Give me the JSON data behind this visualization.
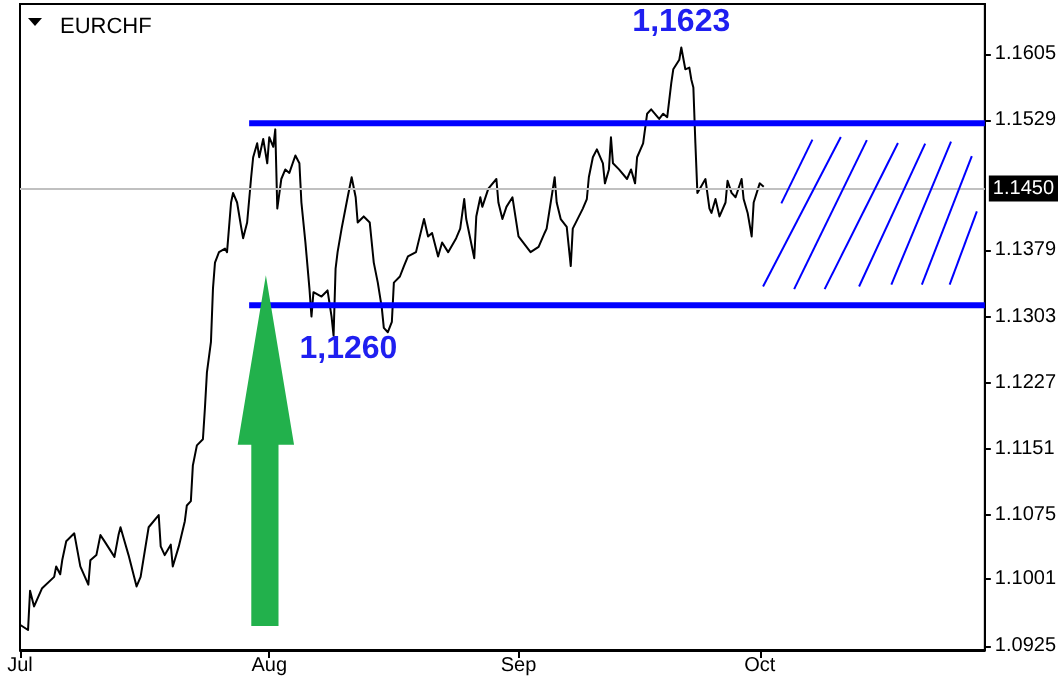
{
  "chart_data": {
    "type": "line",
    "title": "EURCHF",
    "x": [
      "--07-01T00:00",
      "--07-02T00:00",
      "--07-02T06:00",
      "--07-02T18:00",
      "--07-03T18:00",
      "--07-05T06:00",
      "--07-05T12:00",
      "--07-06T00:00",
      "--07-06T06:00",
      "--07-06T18:00",
      "--07-07T18:00",
      "--07-08T12:00",
      "--07-09T12:00",
      "--07-09T18:00",
      "--07-10T12:00",
      "--07-11T00:00",
      "--07-11T12:00",
      "--07-12T18:00",
      "--07-13T06:00",
      "--07-13T12:00",
      "--07-14T00:00",
      "--07-14T12:00",
      "--07-15T12:00",
      "--07-16T00:00",
      "--07-17T00:00",
      "--07-18T06:00",
      "--07-18T12:00",
      "--07-19T00:00",
      "--07-19T18:00",
      "--07-20T00:00",
      "--07-20T18:00",
      "--07-21T12:00",
      "--07-21T18:00",
      "--07-22T06:00",
      "--07-22T12:00",
      "--07-23T00:00",
      "--07-23T18:00",
      "--07-24T00:00",
      "--07-24T06:00",
      "--07-24T18:00",
      "--07-25T00:00",
      "--07-25T06:00",
      "--07-25T18:00",
      "--07-26T12:00",
      "--07-26T18:00",
      "--07-27T06:00",
      "--07-27T12:00",
      "--07-28T00:00",
      "--07-28T12:00",
      "--07-28T18:00",
      "--07-29T06:00",
      "--07-29T18:00",
      "--07-30T00:00",
      "--07-30T12:00",
      "--07-30T18:00",
      "--07-31T06:00",
      "--07-31T18:00",
      "--08-01T00:00",
      "--08-01T12:00",
      "--08-01T18:00",
      "--08-02T00:00",
      "--08-02T12:00",
      "--08-03T00:00",
      "--08-03T12:00",
      "--08-04T06:00",
      "--08-04T18:00",
      "--08-05T00:00",
      "--08-05T12:00",
      "--08-06T00:00",
      "--08-06T06:00",
      "--08-06T12:00",
      "--08-07T12:00",
      "--08-08T06:00",
      "--08-08T18:00",
      "--08-09T00:00",
      "--08-09T06:00",
      "--08-09T12:00",
      "--08-10T00:00",
      "--08-10T18:00",
      "--08-11T06:00",
      "--08-11T18:00",
      "--08-12T00:00",
      "--08-12T18:00",
      "--08-13T12:00",
      "--08-14T00:00",
      "--08-14T12:00",
      "--08-15T00:00",
      "--08-15T06:00",
      "--08-15T18:00",
      "--08-16T06:00",
      "--08-16T12:00",
      "--08-17T06:00",
      "--08-17T18:00",
      "--08-18T06:00",
      "--08-19T06:00",
      "--08-20T06:00",
      "--08-20T18:00",
      "--08-21T06:00",
      "--08-22T00:00",
      "--08-22T12:00",
      "--08-23T06:00",
      "--08-24T06:00",
      "--08-24T18:00",
      "--08-25T06:00",
      "--08-25T12:00",
      "--08-26T12:00",
      "--08-26T18:00",
      "--08-27T06:00",
      "--08-27T12:00",
      "--08-28T06:00",
      "--08-29T06:00",
      "--08-29T12:00",
      "--08-30T00:00",
      "--08-30T12:00",
      "--08-31T06:00",
      "--09-01T00:00",
      "--09-02T12:00",
      "--09-03T12:00",
      "--09-04T06:00",
      "--09-04T12:00",
      "--09-05T12:00",
      "--09-05T18:00",
      "--09-06T06:00",
      "--09-07T00:00",
      "--09-07T12:00",
      "--09-07T18:00",
      "--09-09T00:00",
      "--09-09T12:00",
      "--09-09T18:00",
      "--09-10T06:00",
      "--09-10T18:00",
      "--09-11T12:00",
      "--09-11T18:00",
      "--09-12T06:00",
      "--09-12T12:00",
      "--09-12T18:00",
      "--09-13T12:00",
      "--09-14T12:00",
      "--09-15T00:00",
      "--09-15T12:00",
      "--09-15T18:00",
      "--09-16T12:00",
      "--09-17T00:00",
      "--09-17T12:00",
      "--09-18T12:00",
      "--09-19T00:00",
      "--09-19T12:00",
      "--09-20T00:00",
      "--09-20T06:00",
      "--09-21T00:00",
      "--09-21T06:00",
      "--09-21T18:00",
      "--09-22T06:00",
      "--09-22T12:00",
      "--09-22T18:00",
      "--09-23T00:00",
      "--09-23T06:00",
      "--09-24T06:00",
      "--09-24T18:00",
      "--09-25T00:00",
      "--09-25T12:00",
      "--09-26T00:00",
      "--09-26T18:00",
      "--09-27T00:00",
      "--09-27T12:00",
      "--09-28T00:00",
      "--09-28T18:00",
      "--09-29T00:00",
      "--09-29T12:00",
      "--09-30T00:00",
      "--09-30T06:00",
      "--10-01T00:00",
      "--10-01T12:00"
    ],
    "series": [
      {
        "color": "#000000",
        "values": [
          1.0949,
          1.0943,
          1.0988,
          1.097,
          1.0991,
          1.1004,
          1.1016,
          1.1007,
          1.1023,
          1.1045,
          1.1054,
          1.1016,
          1.0995,
          1.1023,
          1.1029,
          1.1052,
          1.1045,
          1.1027,
          1.1052,
          1.1061,
          1.1045,
          1.1029,
          1.0993,
          1.1004,
          1.1061,
          1.1075,
          1.1039,
          1.1029,
          1.1041,
          1.1016,
          1.1039,
          1.1068,
          1.1086,
          1.1091,
          1.1132,
          1.1155,
          1.1162,
          1.1198,
          1.1239,
          1.1274,
          1.1335,
          1.1365,
          1.1377,
          1.1381,
          1.1377,
          1.1434,
          1.1445,
          1.1434,
          1.1406,
          1.1393,
          1.1411,
          1.1463,
          1.1486,
          1.1502,
          1.1486,
          1.1507,
          1.1479,
          1.1509,
          1.1498,
          1.1518,
          1.1427,
          1.1461,
          1.1472,
          1.1468,
          1.1488,
          1.1479,
          1.1434,
          1.1388,
          1.1335,
          1.1303,
          1.1331,
          1.1326,
          1.1333,
          1.1303,
          1.1281,
          1.1358,
          1.1377,
          1.1404,
          1.144,
          1.1463,
          1.144,
          1.1411,
          1.1418,
          1.1411,
          1.1365,
          1.1342,
          1.1313,
          1.129,
          1.1285,
          1.1297,
          1.1342,
          1.1349,
          1.1361,
          1.1372,
          1.1377,
          1.1415,
          1.1395,
          1.1399,
          1.1372,
          1.1388,
          1.1377,
          1.1393,
          1.1404,
          1.1438,
          1.1415,
          1.137,
          1.1418,
          1.144,
          1.1429,
          1.145,
          1.1461,
          1.1434,
          1.1415,
          1.1429,
          1.144,
          1.1395,
          1.1377,
          1.1383,
          1.1399,
          1.1404,
          1.1463,
          1.1434,
          1.1415,
          1.1406,
          1.1361,
          1.1404,
          1.1427,
          1.1438,
          1.1463,
          1.1486,
          1.1495,
          1.1479,
          1.1456,
          1.1472,
          1.1509,
          1.1479,
          1.1472,
          1.1461,
          1.1472,
          1.1456,
          1.1486,
          1.1502,
          1.1536,
          1.1541,
          1.153,
          1.1536,
          1.1532,
          1.1571,
          1.1587,
          1.1598,
          1.1612,
          1.1587,
          1.1589,
          1.1575,
          1.1566,
          1.1502,
          1.1445,
          1.1461,
          1.1427,
          1.1422,
          1.1438,
          1.1418,
          1.1434,
          1.1459,
          1.1445,
          1.144,
          1.1461,
          1.1438,
          1.1422,
          1.1395,
          1.1434,
          1.1456,
          1.1452
        ]
      },
      {
        "color": "#0000ff",
        "x": [
          "--07-29T12:00",
          "--10-29"
        ],
        "values": [
          1.1525,
          1.1525
        ]
      },
      {
        "color": "#0000ff",
        "x": [
          "--07-29T12:00",
          "--10-29"
        ],
        "values": [
          1.1316,
          1.1316
        ]
      }
    ],
    "xlim": [
      "--07-01",
      "--10-29"
    ],
    "xticks": [
      {
        "value": "--07-01",
        "label": "Jul"
      },
      {
        "value": "--08-01",
        "label": "Aug"
      },
      {
        "value": "--09-01",
        "label": "Sep"
      },
      {
        "value": "--10-01",
        "label": "Oct"
      }
    ],
    "ylim": [
      1.092,
      1.1662
    ],
    "yticks": [
      1.0925,
      1.1001,
      1.1075,
      1.1151,
      1.1227,
      1.1303,
      1.1379,
      1.1529,
      1.1605
    ],
    "ref_lines": [
      {
        "axis": "y",
        "value": 1.145,
        "label": "1.1450",
        "color": "#c0c0c0"
      }
    ],
    "annotations": [
      {
        "text": "1,1623",
        "x": "--09-21T06:00",
        "y": 1.1623
      },
      "1,1260"
    ],
    "grid": false,
    "marker": "none",
    "line_style": "solid"
  }
}
